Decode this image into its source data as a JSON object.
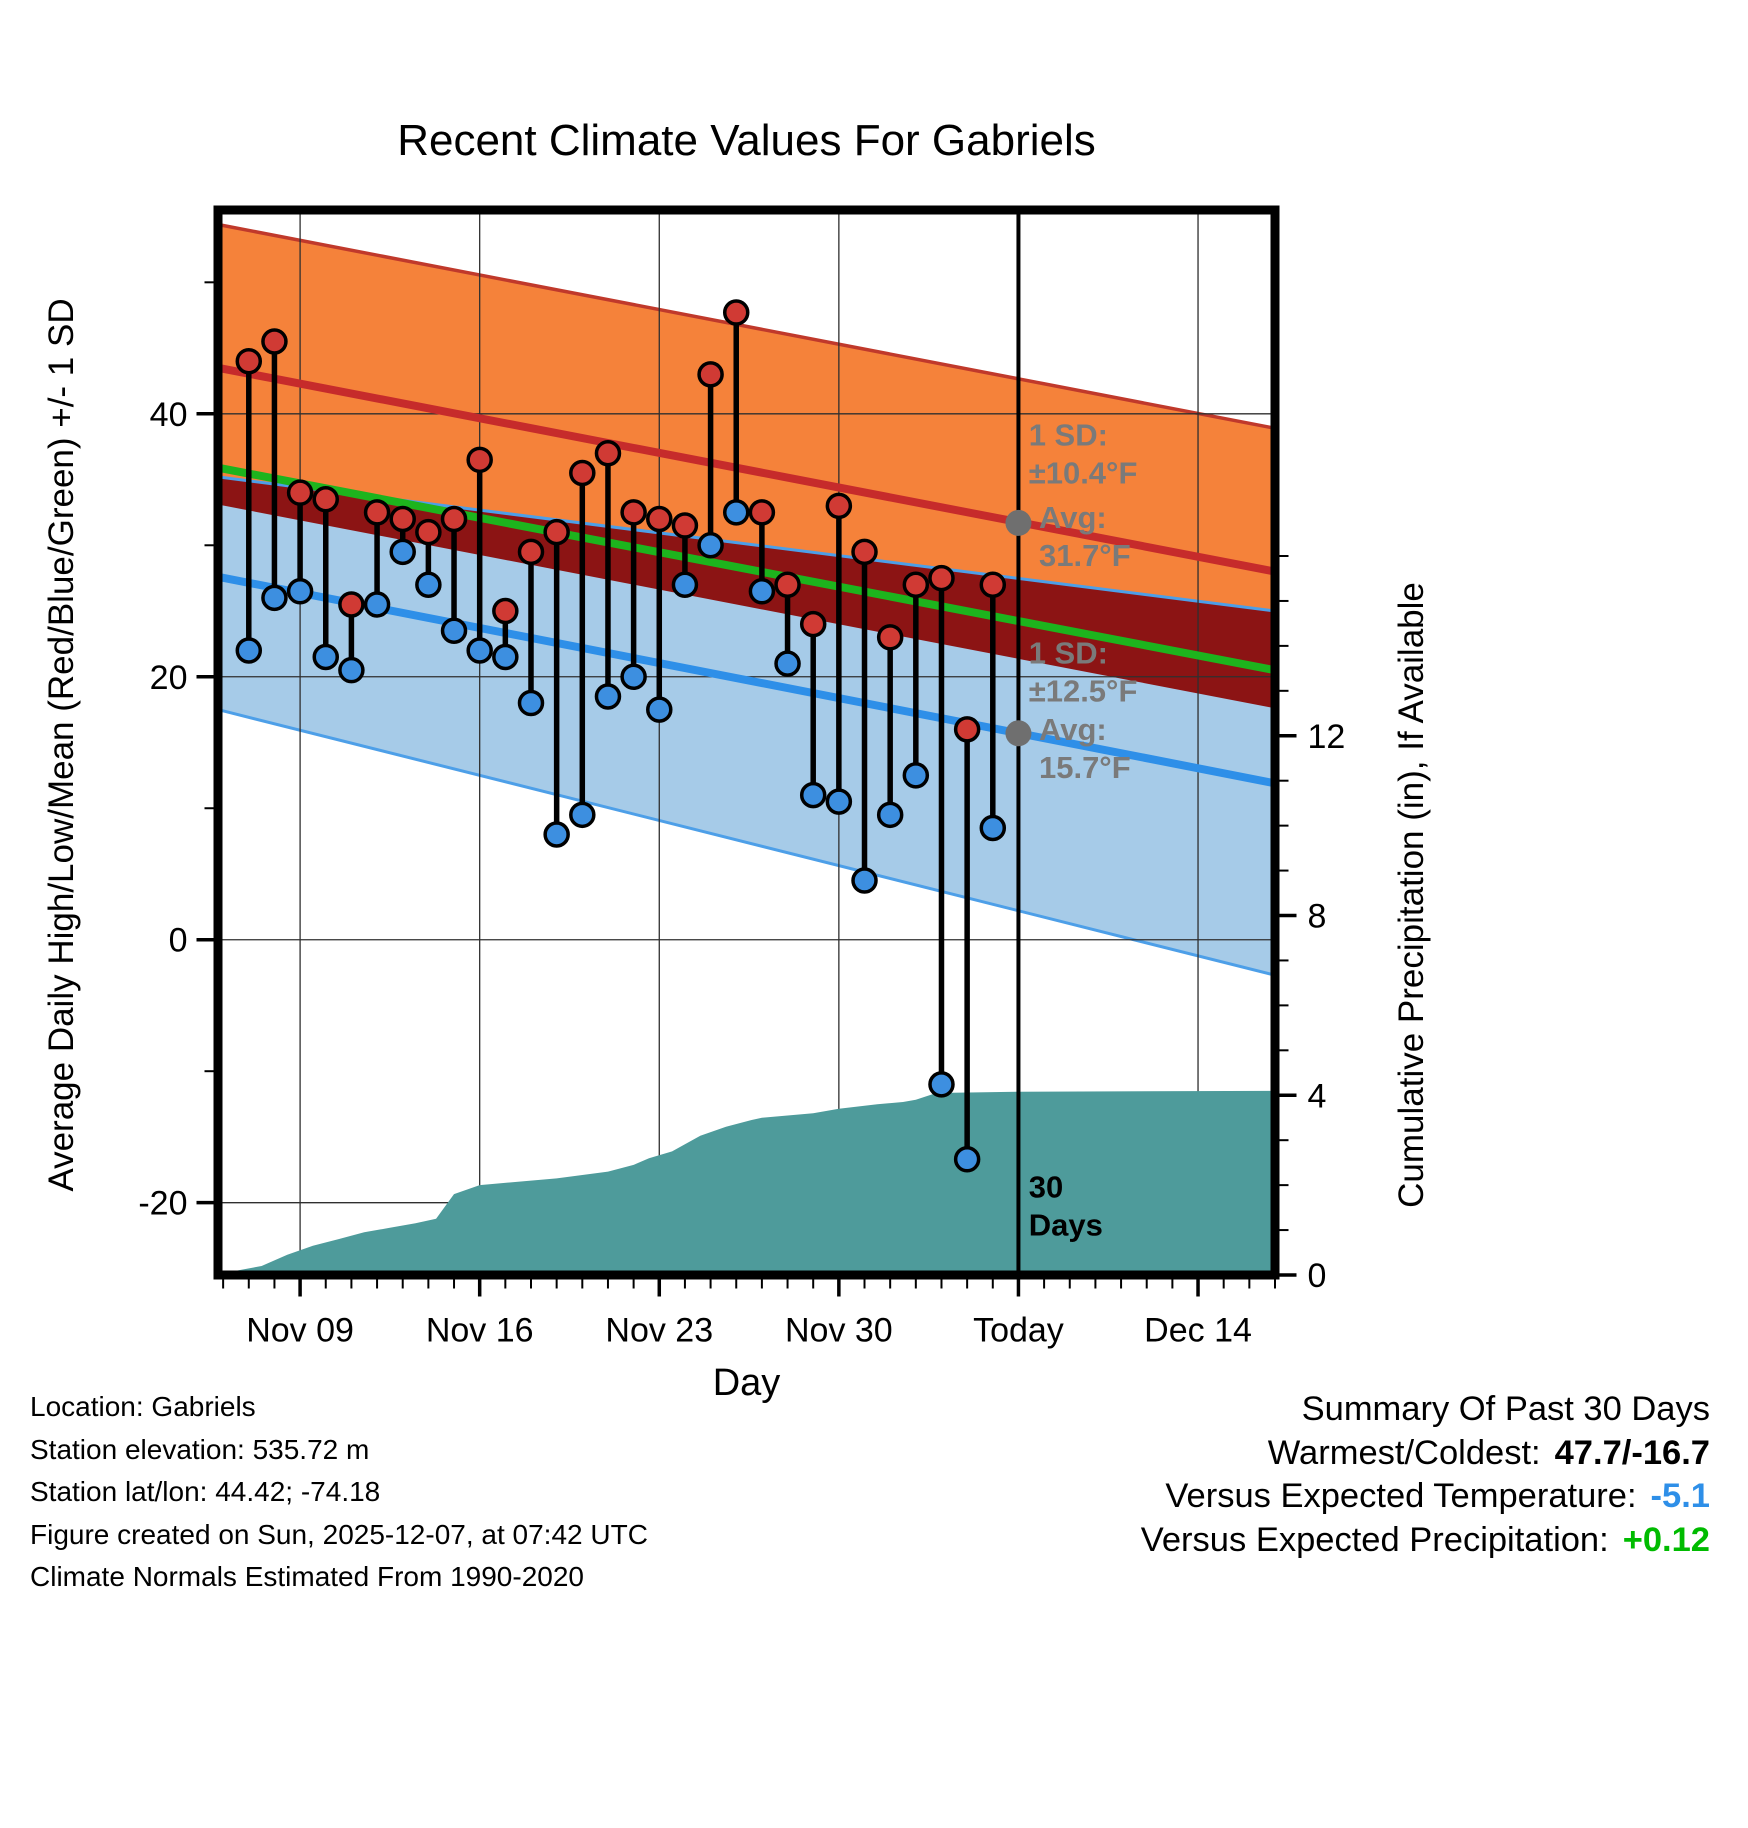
{
  "footer": {
    "lines": [
      "Location: Gabriels",
      "Station elevation: 535.72 m",
      "Station lat/lon: 44.42; -74.18",
      "Figure created on Sun, 2025-12-07, at 07:42 UTC",
      "Climate Normals Estimated From 1990-2020"
    ]
  },
  "summary": {
    "title": "Summary Of Past 30 Days",
    "rows": [
      {
        "label": "Warmest/Coldest:",
        "value": "47.7/-16.7",
        "value_color": "#000000"
      },
      {
        "label": "Versus Expected Temperature:",
        "value": "-5.1",
        "value_color": "#2E8FE8"
      },
      {
        "label": "Versus Expected Precipitation:",
        "value": "+0.12",
        "value_color": "#00BB00"
      }
    ]
  },
  "chart_data": {
    "type": "line",
    "title": "Recent Climate Values For Gabriels",
    "xlabel": "Day",
    "ylabel_left": "Average Daily High/Low/Mean (Red/Blue/Green) +/- 1 SD",
    "ylabel_right": "Cumulative Precipitation (in), If Available",
    "x_domain": [
      -1.2,
      40.0
    ],
    "x_unit": "day index, 0 = Nov 07, 30 = Today (Dec 07)",
    "x_ticks": [
      {
        "day": 2,
        "label": "Nov 09"
      },
      {
        "day": 9,
        "label": "Nov 16"
      },
      {
        "day": 16,
        "label": "Nov 23"
      },
      {
        "day": 23,
        "label": "Nov 30"
      },
      {
        "day": 30,
        "label": "Today"
      },
      {
        "day": 37,
        "label": "Dec 14"
      }
    ],
    "temp_axis": {
      "domain": [
        -25.5,
        55.5
      ],
      "ticks": [
        -20,
        0,
        20,
        40
      ],
      "minor_step": 10
    },
    "precip_axis": {
      "domain": [
        0,
        23.7
      ],
      "ticks": [
        0,
        4,
        8,
        12
      ],
      "minor_step": 1
    },
    "today_day": 30,
    "normals": {
      "high_upper": [
        [
          -1.2,
          54.4
        ],
        [
          40,
          38.9
        ]
      ],
      "high_avg": [
        [
          -1.2,
          43.5
        ],
        [
          40,
          28.0
        ]
      ],
      "high_lower": [
        [
          -1.2,
          33.1
        ],
        [
          40,
          17.6
        ]
      ],
      "mean": [
        [
          -1.2,
          35.9
        ],
        [
          40,
          20.5
        ]
      ],
      "low_upper": [
        [
          -1.2,
          35.2
        ],
        [
          40,
          25.0
        ]
      ],
      "low_avg": [
        [
          -1.2,
          27.6
        ],
        [
          40,
          11.9
        ]
      ],
      "low_lower": [
        [
          -1.2,
          17.5
        ],
        [
          40,
          -2.7
        ]
      ]
    },
    "daily": {
      "first_day_label": "Nov 07",
      "high": [
        44,
        45.5,
        34,
        33.5,
        25.5,
        32.5,
        32,
        31,
        32,
        36.5,
        25,
        29.5,
        31,
        35.5,
        37,
        32.5,
        32,
        31.5,
        43,
        47.7,
        32.5,
        27,
        24,
        33,
        29.5,
        23,
        27,
        27.5,
        16,
        27
      ],
      "low": [
        22,
        26,
        26.5,
        21.5,
        20.5,
        25.5,
        29.5,
        27,
        23.5,
        22,
        21.5,
        18,
        8,
        9.5,
        18.5,
        20,
        17.5,
        27,
        30,
        32.5,
        26.5,
        21,
        11,
        10.5,
        4.5,
        9.5,
        12.5,
        -11,
        -16.7,
        8.5
      ]
    },
    "precip_cumulative": [
      [
        -1.2,
        0.02
      ],
      [
        0.5,
        0.2
      ],
      [
        1.5,
        0.45
      ],
      [
        2.5,
        0.65
      ],
      [
        3.5,
        0.8
      ],
      [
        4.5,
        0.95
      ],
      [
        5.5,
        1.05
      ],
      [
        6.5,
        1.15
      ],
      [
        7.3,
        1.25
      ],
      [
        8,
        1.8
      ],
      [
        9,
        2.0
      ],
      [
        12,
        2.15
      ],
      [
        14,
        2.3
      ],
      [
        15,
        2.45
      ],
      [
        15.6,
        2.6
      ],
      [
        16.5,
        2.75
      ],
      [
        17.6,
        3.1
      ],
      [
        18.6,
        3.3
      ],
      [
        19.6,
        3.45
      ],
      [
        20,
        3.5
      ],
      [
        22,
        3.6
      ],
      [
        23,
        3.7
      ],
      [
        24.5,
        3.8
      ],
      [
        25.5,
        3.85
      ],
      [
        26,
        3.9
      ],
      [
        26.8,
        4.05
      ],
      [
        30,
        4.08
      ],
      [
        40,
        4.1
      ]
    ],
    "markers": [
      {
        "day": 30,
        "temp": 31.7,
        "name": "avg-high-marker"
      },
      {
        "day": 30,
        "temp": 15.7,
        "name": "avg-low-marker"
      }
    ],
    "annotations": [
      {
        "day": 30.4,
        "temp": 37.6,
        "lines": [
          "1 SD:",
          "±10.4°F"
        ],
        "color": "#7a7a7a",
        "bold": true,
        "name": "high-sd-annotation"
      },
      {
        "day": 30.8,
        "temp": 31.3,
        "lines": [
          "Avg:",
          "31.7°F"
        ],
        "color": "#7a7a7a",
        "bold": true,
        "name": "avg-high-annotation"
      },
      {
        "day": 30.4,
        "temp": 21.0,
        "lines": [
          "1 SD:",
          "±12.5°F"
        ],
        "color": "#7a7a7a",
        "bold": true,
        "name": "low-sd-annotation"
      },
      {
        "day": 30.8,
        "temp": 15.2,
        "lines": [
          "Avg:",
          "15.7°F"
        ],
        "color": "#7a7a7a",
        "bold": true,
        "name": "avg-low-annotation"
      },
      {
        "day": 30.4,
        "temp": -19.6,
        "lines": [
          "30",
          "Days"
        ],
        "color": "#000000",
        "bold": true,
        "name": "thirty-days-label"
      }
    ],
    "colors": {
      "high_band": "#F5823A",
      "high_edge": "#C0392B",
      "high_line": "#C62B2B",
      "overlap_band": "#8C1414",
      "mean_line": "#1DB41D",
      "low_band": "#A6CBE8",
      "low_edge": "#4D9FE8",
      "low_line": "#2E8FE8",
      "high_dot": "#D03A34",
      "low_dot": "#3D8FE0",
      "precip_fill": "#4E9B9B",
      "marker_gray": "#6F6F6F",
      "grid": "#2F2F2F"
    }
  }
}
